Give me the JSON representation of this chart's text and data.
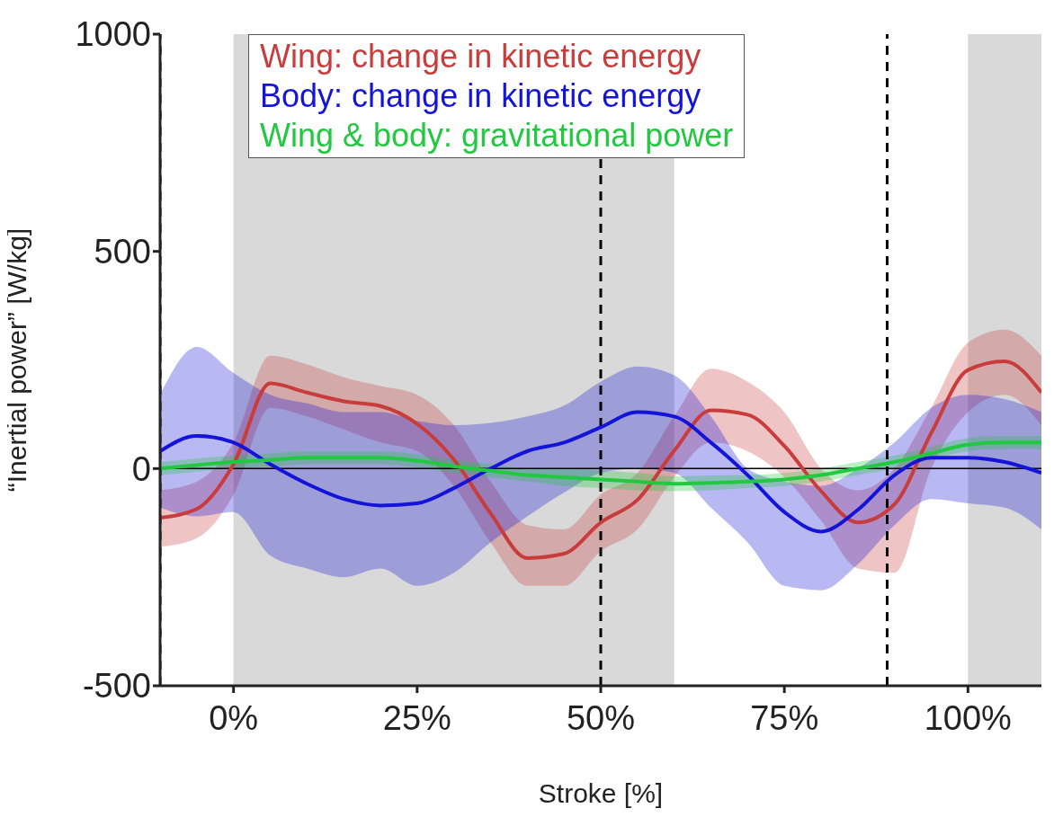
{
  "chart_data": {
    "type": "line",
    "ylabel": "“Inertial power” [W/kg]",
    "xlabel": "Stroke [%]",
    "x": [
      -10,
      -5,
      0,
      5,
      10,
      15,
      20,
      25,
      30,
      35,
      40,
      45,
      50,
      55,
      60,
      65,
      70,
      75,
      80,
      85,
      90,
      95,
      100,
      105,
      110
    ],
    "xlim": [
      -10,
      110
    ],
    "xticks": [
      {
        "value": 0,
        "label": "0%"
      },
      {
        "value": 25,
        "label": "25%"
      },
      {
        "value": 50,
        "label": "50%"
      },
      {
        "value": 75,
        "label": "75%"
      },
      {
        "value": 100,
        "label": "100%"
      }
    ],
    "ylim": [
      -500,
      1000
    ],
    "yticks": [
      -500,
      0,
      500,
      1000
    ],
    "series": [
      {
        "name": "Wing: change in kinetic energy",
        "color": "#c83c3c",
        "values": [
          -113,
          -93,
          10,
          196,
          175,
          155,
          144,
          103,
          21,
          -103,
          -206,
          -196,
          -124,
          -72,
          41,
          134,
          124,
          52,
          -52,
          -124,
          -82,
          82,
          227,
          247,
          175
        ],
        "lower": [
          -180,
          -160,
          -60,
          140,
          120,
          90,
          60,
          40,
          -40,
          -170,
          -270,
          -270,
          -190,
          -140,
          -20,
          60,
          40,
          -20,
          -120,
          -230,
          -240,
          0,
          130,
          170,
          100
        ],
        "upper": [
          -50,
          -30,
          60,
          260,
          240,
          210,
          190,
          170,
          100,
          -30,
          -130,
          -140,
          -60,
          -10,
          120,
          230,
          200,
          130,
          0,
          -50,
          0,
          140,
          290,
          320,
          260
        ]
      },
      {
        "name": "Body: change in kinetic energy",
        "color": "#1414d8",
        "values": [
          40,
          75,
          60,
          10,
          -35,
          -70,
          -85,
          -80,
          -45,
          0,
          40,
          60,
          95,
          130,
          120,
          60,
          -15,
          -100,
          -145,
          -95,
          -15,
          25,
          25,
          15,
          -10
        ],
        "lower": [
          -90,
          -110,
          -100,
          -200,
          -230,
          -250,
          -230,
          -270,
          -240,
          -170,
          -110,
          -55,
          -10,
          0,
          -10,
          -90,
          -170,
          -270,
          -280,
          -220,
          -130,
          -70,
          -80,
          -90,
          -140
        ],
        "upper": [
          170,
          280,
          220,
          170,
          150,
          130,
          130,
          110,
          100,
          105,
          120,
          145,
          200,
          235,
          215,
          120,
          0,
          -30,
          -40,
          0,
          60,
          140,
          170,
          160,
          130
        ]
      },
      {
        "name": "Wing & body: gravitational power",
        "color": "#22c840",
        "values": [
          0,
          8,
          15,
          20,
          25,
          25,
          25,
          18,
          5,
          -5,
          -15,
          -20,
          -25,
          -30,
          -35,
          -33,
          -30,
          -25,
          -15,
          0,
          15,
          35,
          55,
          60,
          60
        ],
        "lower": [
          -15,
          -7,
          0,
          5,
          10,
          10,
          10,
          3,
          -10,
          -20,
          -30,
          -40,
          -45,
          -50,
          -52,
          -50,
          -45,
          -40,
          -30,
          -15,
          0,
          20,
          40,
          45,
          45
        ],
        "upper": [
          15,
          23,
          30,
          35,
          40,
          40,
          40,
          33,
          20,
          10,
          0,
          0,
          -5,
          -10,
          -18,
          -16,
          -15,
          -10,
          0,
          15,
          30,
          50,
          70,
          75,
          75
        ]
      }
    ],
    "bands": [
      {
        "axis": "x",
        "from": 0,
        "to": 60,
        "color": "#d9d9d9"
      },
      {
        "axis": "x",
        "from": 100,
        "to": 110,
        "color": "#d9d9d9"
      }
    ],
    "ref_lines": [
      {
        "axis": "x",
        "value": -10,
        "color": "#000000",
        "line_style": "dashed"
      },
      {
        "axis": "x",
        "value": 50,
        "color": "#000000",
        "line_style": "dashed"
      },
      {
        "axis": "x",
        "value": 89,
        "color": "#000000",
        "line_style": "dashed"
      },
      {
        "axis": "y",
        "value": 0,
        "color": "#000000",
        "line_style": "solid"
      }
    ],
    "legend": "top",
    "grid": false,
    "marker": "none",
    "line_style": "solid"
  }
}
